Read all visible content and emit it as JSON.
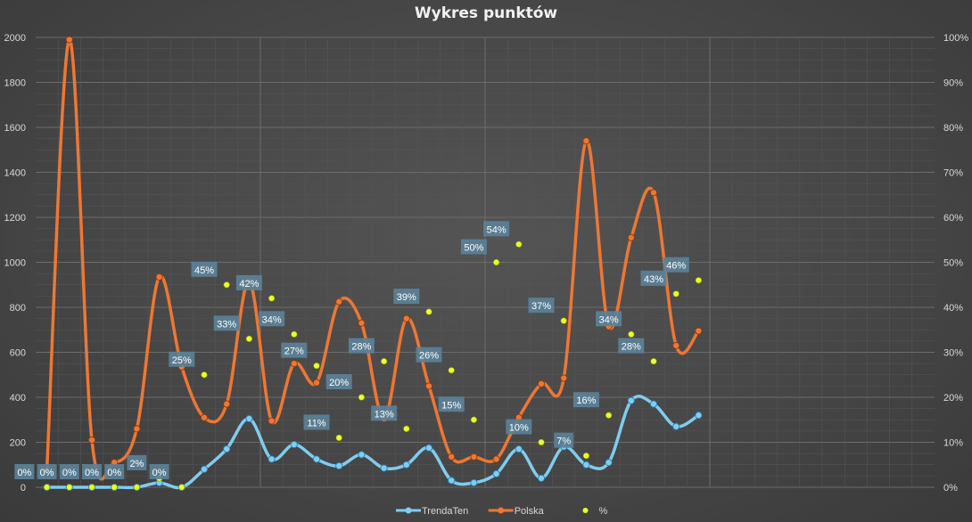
{
  "chart_data": {
    "type": "line",
    "title": "Wykres punktów",
    "y_left": {
      "min": 0,
      "max": 2000,
      "step": 200,
      "ticks": [
        "0",
        "200",
        "400",
        "600",
        "800",
        "1000",
        "1200",
        "1400",
        "1600",
        "1800",
        "2000"
      ]
    },
    "y_right": {
      "min": 0,
      "max": 1,
      "step": 0.1,
      "ticks": [
        "0%",
        "10%",
        "20%",
        "30%",
        "40%",
        "50%",
        "60%",
        "70%",
        "80%",
        "90%",
        "100%"
      ]
    },
    "x_slots": 40,
    "grid": true,
    "legend_position": "bottom",
    "series": [
      {
        "name": "TrendaTen",
        "axis": "left",
        "color": "#7fcdf0",
        "values": [
          0,
          0,
          0,
          0,
          0,
          20,
          0,
          80,
          170,
          305,
          125,
          190,
          125,
          95,
          145,
          85,
          100,
          175,
          30,
          20,
          60,
          170,
          40,
          180,
          100,
          110,
          385,
          370,
          270,
          320
        ]
      },
      {
        "name": "Polska",
        "axis": "left",
        "color": "#ee7733",
        "values": [
          80,
          1990,
          210,
          110,
          260,
          935,
          535,
          310,
          370,
          915,
          295,
          550,
          465,
          825,
          730,
          305,
          750,
          450,
          135,
          135,
          125,
          310,
          460,
          485,
          1540,
          715,
          1110,
          1310,
          630,
          695
        ]
      },
      {
        "name": "%",
        "axis": "right",
        "color": "#eaff2e",
        "values": [
          0,
          0,
          0,
          0,
          0,
          0.02,
          0,
          null,
          null,
          null,
          null,
          null,
          null,
          null,
          null,
          null,
          null,
          null,
          null,
          null,
          null,
          null,
          null,
          null,
          null,
          null,
          null,
          null,
          null,
          null
        ],
        "percent_values": [
          0,
          0,
          0,
          0,
          0,
          0.02,
          0,
          0.25,
          0.45,
          0.33,
          0.42,
          0.34,
          0.27,
          0.11,
          0.2,
          0.28,
          0.13,
          0.39,
          0.26,
          0.15,
          0.5,
          0.54,
          0.1,
          0.37,
          0.07,
          0.16,
          0.34,
          0.28,
          0.43,
          0.46
        ],
        "labels": [
          "0%",
          "0%",
          "0%",
          "0%",
          "0%",
          "2%",
          "0%",
          "25%",
          "45%",
          "33%",
          "42%",
          "34%",
          "27%",
          "11%",
          "20%",
          "28%",
          "13%",
          "39%",
          "26%",
          "15%",
          "50%",
          "54%",
          "10%",
          "37%",
          "7%",
          "16%",
          "34%",
          "28%",
          "43%",
          "46%"
        ]
      }
    ]
  }
}
